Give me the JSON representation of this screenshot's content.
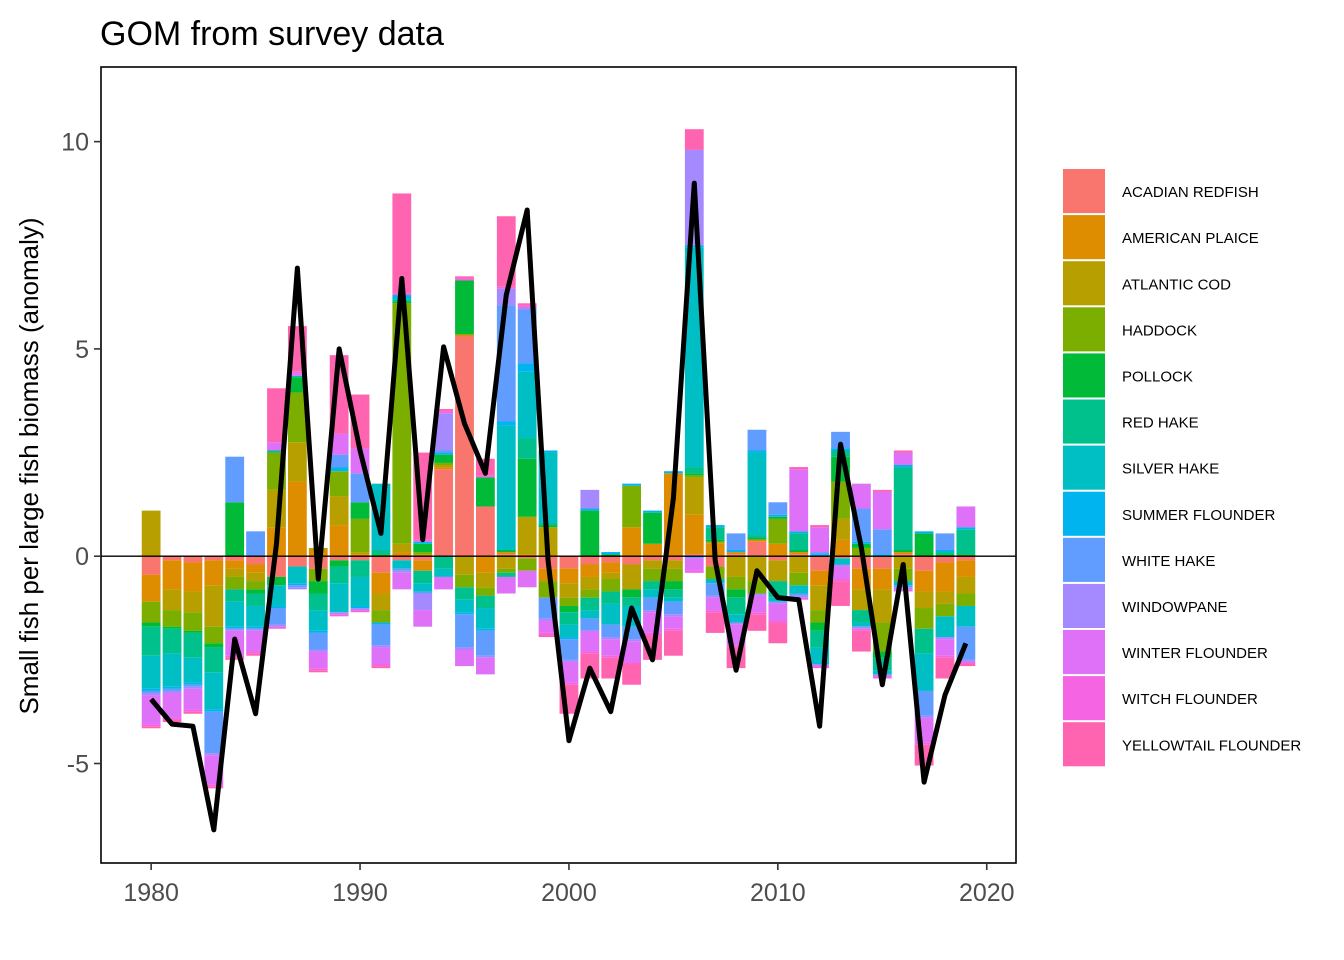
{
  "chart_data": {
    "type": "bar",
    "stacking": "diverging",
    "title": "GOM from survey data",
    "xlabel": "",
    "ylabel": "Small fish per large fish biomass (anomaly)",
    "xlim": [
      1977.6,
      2021.4
    ],
    "ylim": [
      -7.4,
      11.8
    ],
    "xticks": [
      1980,
      1990,
      2000,
      2010,
      2020
    ],
    "yticks": [
      -5,
      0,
      5,
      10
    ],
    "ytick_labels": [
      "-5",
      "0",
      "5",
      "10"
    ],
    "grid": false,
    "legend_position": "right",
    "years": [
      1980,
      1981,
      1982,
      1983,
      1984,
      1985,
      1986,
      1987,
      1988,
      1989,
      1990,
      1991,
      1992,
      1993,
      1994,
      1995,
      1996,
      1997,
      1998,
      1999,
      2000,
      2001,
      2002,
      2003,
      2004,
      2005,
      2006,
      2007,
      2008,
      2009,
      2010,
      2011,
      2012,
      2013,
      2014,
      2015,
      2016,
      2017,
      2018,
      2019
    ],
    "series": [
      {
        "name": "ACADIAN REDFISH",
        "color": "#F8766D",
        "values": [
          -0.45,
          -0.1,
          -0.15,
          -0.1,
          -0.1,
          -0.2,
          -0.5,
          -0.25,
          -0.3,
          -0.1,
          -0.1,
          -0.4,
          -0.1,
          -0.1,
          2.1,
          5.3,
          1.2,
          0.05,
          -0.05,
          -0.3,
          -0.3,
          -0.2,
          -0.15,
          -0.2,
          -0.1,
          -0.1,
          0.05,
          -0.25,
          0.05,
          0.35,
          -0.1,
          0.05,
          -0.35,
          -0.05,
          -0.3,
          -0.3,
          0.05,
          -0.35,
          -0.15,
          -0.1
        ]
      },
      {
        "name": "AMERICAN PLAICE",
        "color": "#DE8C00",
        "values": [
          -0.65,
          -0.7,
          -0.7,
          -0.6,
          -0.2,
          -0.2,
          0.7,
          1.8,
          0.15,
          0.75,
          0.05,
          -0.5,
          0.1,
          -0.25,
          0.05,
          0.05,
          -0.4,
          0.05,
          0.05,
          -0.3,
          -0.35,
          -0.3,
          -0.25,
          0.7,
          0.3,
          2.0,
          0.95,
          0.3,
          0.05,
          0.05,
          0.3,
          0.05,
          -0.35,
          0.4,
          -0.5,
          -0.5,
          0.05,
          -0.5,
          -0.7,
          -0.4
        ]
      },
      {
        "name": "ATLANTIC COD",
        "color": "#B79F00",
        "values": [
          1.1,
          -0.5,
          -0.5,
          -1.0,
          -0.2,
          -0.2,
          0.9,
          0.95,
          0.05,
          0.7,
          0.05,
          -0.4,
          0.2,
          0.05,
          0.05,
          -0.45,
          -0.35,
          -0.3,
          0.9,
          0.7,
          -0.35,
          -0.3,
          -0.15,
          -0.6,
          -0.2,
          -0.2,
          0.9,
          0.05,
          -0.5,
          -0.6,
          -0.5,
          -0.4,
          -0.6,
          0.5,
          -0.5,
          -0.8,
          -0.3,
          -0.4,
          -0.3,
          -0.4
        ]
      },
      {
        "name": "HADDOCK",
        "color": "#7CAE00",
        "values": [
          -0.5,
          -0.4,
          -0.45,
          -0.4,
          -0.3,
          -0.2,
          0.9,
          1.2,
          -0.3,
          0.6,
          0.8,
          -0.3,
          5.8,
          0.05,
          0.05,
          -0.3,
          -0.2,
          -0.1,
          -0.3,
          -0.4,
          -0.2,
          -0.2,
          -0.3,
          1.0,
          -0.3,
          -0.3,
          0.05,
          -0.3,
          -0.3,
          -0.3,
          0.6,
          -0.3,
          -0.3,
          0.9,
          0.2,
          -0.7,
          -0.3,
          -0.5,
          -0.3,
          -0.3
        ]
      },
      {
        "name": "POLLOCK",
        "color": "#00BA38",
        "values": [
          -0.1,
          -0.05,
          -0.05,
          -0.1,
          1.3,
          -0.1,
          -0.2,
          0.35,
          -0.3,
          -0.15,
          0.4,
          0.05,
          0.05,
          0.2,
          0.2,
          1.3,
          0.7,
          0.05,
          1.4,
          0.05,
          -0.15,
          1.1,
          0.05,
          -0.2,
          0.75,
          -0.2,
          0.05,
          0.05,
          -0.2,
          0.05,
          0.05,
          0.05,
          -0.2,
          0.6,
          0.1,
          -0.15,
          0.05,
          0.55,
          0.05,
          0.05
        ]
      },
      {
        "name": "RED HAKE",
        "color": "#00C08B",
        "values": [
          -0.7,
          -0.6,
          -0.6,
          -0.6,
          -0.3,
          -0.3,
          0.05,
          0.05,
          -0.4,
          -0.4,
          -0.4,
          0.1,
          0.05,
          -0.3,
          -0.3,
          -0.3,
          -0.3,
          -0.1,
          0.5,
          0.05,
          -0.3,
          -0.3,
          -0.3,
          -0.2,
          -0.2,
          -0.2,
          0.15,
          0.3,
          -0.4,
          0.05,
          -0.4,
          0.4,
          -0.4,
          0.15,
          -0.3,
          -0.3,
          2.0,
          -0.6,
          0.05,
          0.6
        ]
      },
      {
        "name": "SILVER HAKE",
        "color": "#00BFC4",
        "values": [
          -0.8,
          -0.8,
          -0.6,
          -0.9,
          -0.6,
          -0.5,
          -0.5,
          -0.4,
          -0.5,
          -0.7,
          -0.7,
          1.6,
          -0.2,
          -0.2,
          -0.2,
          -0.3,
          -0.5,
          3.0,
          1.6,
          1.7,
          -0.3,
          -0.2,
          -0.5,
          -0.5,
          -0.2,
          -0.1,
          5.3,
          -0.1,
          -0.2,
          2.0,
          -0.1,
          -0.2,
          -0.4,
          -0.15,
          -0.1,
          -0.1,
          -0.1,
          -0.9,
          -0.5,
          -0.5
        ]
      },
      {
        "name": "SUMMER FLOUNDER",
        "color": "#00B4F0",
        "values": [
          -0.05,
          -0.05,
          -0.05,
          -0.05,
          -0.05,
          -0.05,
          -0.05,
          -0.05,
          -0.05,
          0.1,
          -0.05,
          -0.05,
          0.1,
          0.05,
          0.05,
          -0.05,
          -0.05,
          0.1,
          0.2,
          0.05,
          -0.05,
          0.05,
          0.05,
          0.05,
          0.05,
          0.05,
          0.05,
          0.05,
          0.05,
          0.05,
          0.05,
          0.05,
          0.05,
          0.05,
          0.05,
          0.05,
          0.05,
          0.05,
          0.05,
          0.05
        ]
      },
      {
        "name": "WHITE HAKE",
        "color": "#619CFF",
        "values": [
          -0.05,
          -0.05,
          -0.05,
          -1.0,
          1.1,
          0.6,
          -0.4,
          -0.05,
          -0.4,
          0.3,
          0.7,
          -0.5,
          -0.05,
          -0.05,
          0.05,
          -0.8,
          -0.6,
          2.8,
          1.3,
          -0.5,
          -0.5,
          -0.3,
          -0.3,
          -0.3,
          -0.3,
          -0.3,
          -0.05,
          -0.3,
          0.4,
          0.5,
          0.3,
          -0.05,
          0.05,
          0.4,
          0.8,
          0.6,
          -0.05,
          -0.6,
          0.4,
          -0.8
        ]
      },
      {
        "name": "WINDOWPANE",
        "color": "#A58AFF",
        "values": [
          -0.05,
          -0.05,
          -0.05,
          -0.05,
          -0.05,
          -0.05,
          -0.05,
          -0.05,
          -0.05,
          -0.05,
          -0.05,
          -0.05,
          -0.05,
          -0.4,
          0.9,
          -0.05,
          -0.05,
          0.4,
          0.05,
          -0.05,
          -0.05,
          0.45,
          -0.05,
          -0.05,
          -0.05,
          -0.05,
          2.3,
          -0.05,
          -0.05,
          -0.05,
          -0.05,
          -0.05,
          -0.05,
          -0.05,
          -0.05,
          -0.05,
          -0.05,
          -0.05,
          -0.05,
          -0.05
        ]
      },
      {
        "name": "WINTER FLOUNDER",
        "color": "#DF70F8",
        "values": [
          -0.7,
          -0.6,
          -0.5,
          -0.7,
          -0.6,
          -0.5,
          0.2,
          0.05,
          -0.4,
          0.5,
          0.6,
          -0.4,
          -0.4,
          -0.4,
          -0.3,
          -0.4,
          -0.4,
          -0.4,
          -0.4,
          -0.3,
          -0.5,
          -0.5,
          -0.4,
          -0.5,
          -0.5,
          -0.3,
          -0.3,
          -0.3,
          -0.5,
          -0.4,
          -0.4,
          1.5,
          0.6,
          -0.3,
          0.6,
          0.9,
          0.3,
          -0.6,
          -0.4,
          0.5
        ]
      },
      {
        "name": "WITCH FLOUNDER",
        "color": "#F564E3",
        "values": [
          -0.05,
          -0.05,
          -0.05,
          -0.05,
          -0.05,
          -0.05,
          -0.05,
          0.05,
          -0.05,
          -0.05,
          -0.05,
          -0.05,
          0.05,
          0.05,
          0.05,
          0.05,
          0.05,
          0.05,
          0.05,
          -0.05,
          -0.05,
          -0.05,
          -0.05,
          -0.05,
          -0.05,
          -0.05,
          -0.05,
          -0.05,
          -0.05,
          -0.05,
          -0.05,
          -0.05,
          -0.05,
          -0.05,
          -0.05,
          -0.05,
          -0.05,
          -0.05,
          -0.05,
          -0.05
        ]
      },
      {
        "name": "YELLOWTAIL FLOUNDER",
        "color": "#FF64B0",
        "values": [
          -0.05,
          -0.05,
          -0.05,
          -0.05,
          -0.05,
          -0.05,
          1.3,
          1.1,
          -0.05,
          1.9,
          1.3,
          -0.05,
          2.4,
          2.1,
          0.05,
          0.05,
          0.4,
          1.7,
          0.05,
          -0.05,
          -0.7,
          -0.6,
          -0.5,
          -0.5,
          -0.6,
          -0.6,
          0.5,
          -0.5,
          -0.5,
          -0.4,
          -0.5,
          0.05,
          0.05,
          -0.6,
          -0.5,
          0.05,
          0.05,
          -0.5,
          -0.5,
          -0.05
        ]
      }
    ],
    "total_line": {
      "color": "#000000",
      "values": [
        -3.45,
        -4.05,
        -4.1,
        -6.6,
        -2.0,
        -3.8,
        0.3,
        6.95,
        -0.55,
        5.0,
        2.55,
        0.55,
        6.7,
        0.4,
        5.05,
        3.2,
        2.0,
        6.3,
        8.35,
        -0.1,
        -4.45,
        -2.7,
        -3.75,
        -1.25,
        -2.5,
        1.4,
        9.0,
        -0.1,
        -2.75,
        -0.35,
        -1.0,
        -1.05,
        -4.1,
        2.7,
        0.2,
        -3.1,
        -0.2,
        -5.45,
        -3.35,
        -2.1
      ]
    },
    "zero_line": true
  }
}
